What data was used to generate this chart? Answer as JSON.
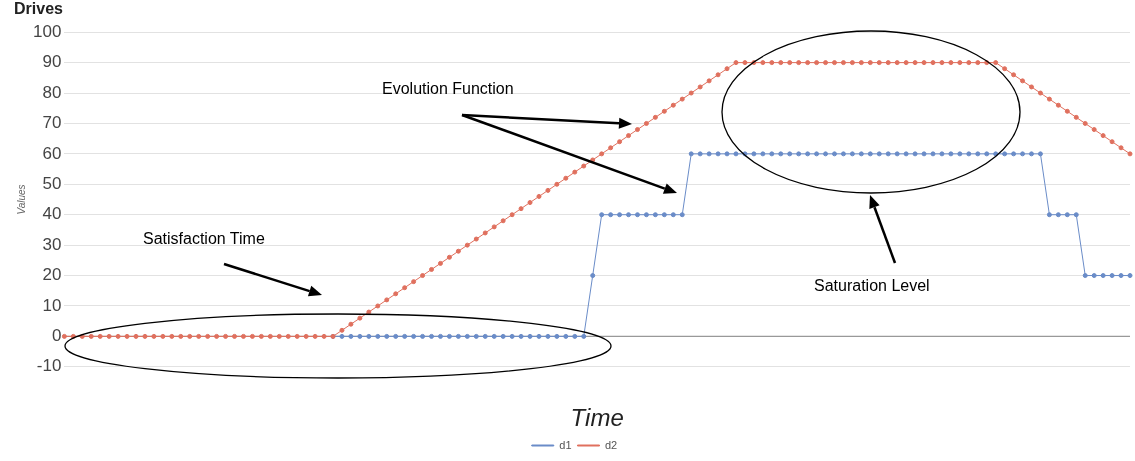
{
  "chart_data": {
    "type": "line",
    "title": "Drives",
    "xlabel": "Time",
    "ylabel": "Values",
    "categories": [
      null,
      null,
      null,
      null,
      null,
      null,
      null,
      null,
      null,
      null,
      null,
      null,
      null,
      null,
      null,
      null,
      null,
      null,
      null,
      null,
      null,
      null,
      null,
      null,
      null,
      null,
      null,
      null,
      null,
      null,
      null,
      null,
      null,
      null,
      null,
      null,
      null,
      null,
      null,
      null,
      null,
      null,
      null,
      null,
      null,
      null,
      null,
      null,
      null,
      null,
      null,
      null,
      null,
      null,
      null,
      null,
      null,
      null,
      null,
      null,
      null,
      null,
      null,
      null,
      null,
      null,
      null,
      null,
      null,
      null,
      null,
      null,
      null,
      null,
      null,
      null,
      null,
      null,
      null,
      null,
      null,
      null,
      null,
      null,
      null,
      null,
      null,
      null,
      null,
      null,
      null,
      null,
      null,
      null,
      null,
      null,
      null,
      null,
      null,
      null,
      null,
      null,
      null,
      null,
      null,
      null,
      null,
      null,
      null,
      null,
      null,
      null,
      null,
      null,
      null,
      null,
      null,
      null,
      null,
      null
    ],
    "series": [
      {
        "name": "d1",
        "color": "#6a8cc8",
        "values": [
          null,
          null,
          null,
          null,
          null,
          null,
          null,
          null,
          null,
          null,
          null,
          null,
          null,
          null,
          null,
          null,
          null,
          null,
          null,
          null,
          null,
          null,
          null,
          null,
          null,
          null,
          null,
          null,
          null,
          null,
          0,
          0,
          0,
          0,
          0,
          0,
          0,
          0,
          0,
          0,
          0,
          0,
          0,
          0,
          0,
          0,
          0,
          0,
          0,
          0,
          0,
          0,
          0,
          0,
          0,
          0,
          0,
          0,
          0,
          20,
          40,
          40,
          40,
          40,
          40,
          40,
          40,
          40,
          40,
          40,
          60,
          60,
          60,
          60,
          60,
          60,
          60,
          60,
          60,
          60,
          60,
          60,
          60,
          60,
          60,
          60,
          60,
          60,
          60,
          60,
          60,
          60,
          60,
          60,
          60,
          60,
          60,
          60,
          60,
          60,
          60,
          60,
          60,
          60,
          60,
          60,
          60,
          60,
          60,
          60,
          40,
          40,
          40,
          40,
          20,
          20,
          20,
          20,
          20,
          20
        ]
      },
      {
        "name": "d2",
        "color": "#e0705e",
        "values": [
          0,
          0,
          0,
          0,
          0,
          0,
          0,
          0,
          0,
          0,
          0,
          0,
          0,
          0,
          0,
          0,
          0,
          0,
          0,
          0,
          0,
          0,
          0,
          0,
          0,
          0,
          0,
          0,
          0,
          0,
          0,
          2,
          4,
          6,
          8,
          10,
          12,
          14,
          16,
          18,
          20,
          22,
          24,
          26,
          28,
          30,
          32,
          34,
          36,
          38,
          40,
          42,
          44,
          46,
          48,
          50,
          52,
          54,
          56,
          58,
          60,
          62,
          64,
          66,
          68,
          70,
          72,
          74,
          76,
          78,
          80,
          82,
          84,
          86,
          88,
          90,
          90,
          90,
          90,
          90,
          90,
          90,
          90,
          90,
          90,
          90,
          90,
          90,
          90,
          90,
          90,
          90,
          90,
          90,
          90,
          90,
          90,
          90,
          90,
          90,
          90,
          90,
          90,
          90,
          90,
          88,
          86,
          84,
          82,
          80,
          78,
          76,
          74,
          72,
          70,
          68,
          66,
          64,
          62,
          60
        ]
      }
    ],
    "ylim": [
      -10,
      100
    ],
    "yticks": [
      -10,
      0,
      10,
      20,
      30,
      40,
      50,
      60,
      70,
      80,
      90,
      100
    ],
    "grid": "y",
    "legend": "bottom",
    "marker": "circle",
    "line_style": "solid",
    "ref_lines": [
      {
        "axis": "y",
        "value": 0,
        "color": "#999999"
      }
    ],
    "annotations": [
      "Evolution Function",
      "Satisfaction Time",
      "Saturation Level"
    ]
  }
}
